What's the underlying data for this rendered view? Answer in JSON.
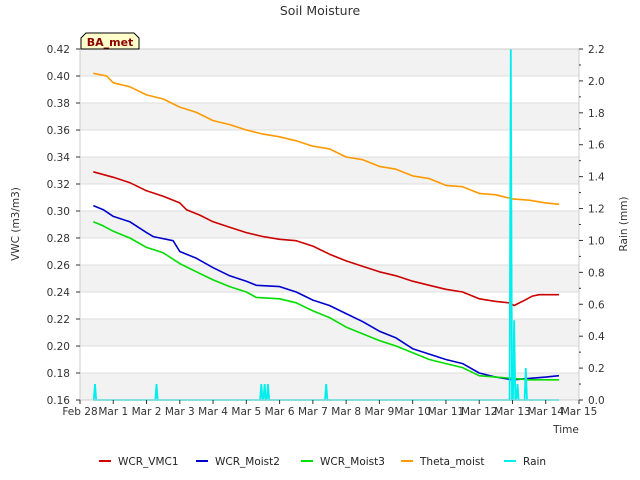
{
  "chart_data": {
    "type": "line",
    "title": "Soil Moisture",
    "station_label": "BA_met",
    "xlabel": "Time",
    "ylabel": "VWC (m3/m3)",
    "y2label": "Rain (mm)",
    "x_ticks": [
      {
        "day": 0,
        "label": "Feb 28"
      },
      {
        "day": 1,
        "label": "Mar 1"
      },
      {
        "day": 2,
        "label": "Mar 2"
      },
      {
        "day": 3,
        "label": "Mar 3"
      },
      {
        "day": 4,
        "label": "Mar 4"
      },
      {
        "day": 5,
        "label": "Mar 5"
      },
      {
        "day": 6,
        "label": "Mar 6"
      },
      {
        "day": 7,
        "label": "Mar 7"
      },
      {
        "day": 8,
        "label": "Mar 8"
      },
      {
        "day": 9,
        "label": "Mar 9"
      },
      {
        "day": 10,
        "label": "Mar 10"
      },
      {
        "day": 11,
        "label": "Mar 11"
      },
      {
        "day": 12,
        "label": "Mar 12"
      },
      {
        "day": 13,
        "label": "Mar 13"
      },
      {
        "day": 14,
        "label": "Mar 14"
      },
      {
        "day": 15,
        "label": "Mar 15"
      }
    ],
    "xlim": [
      0,
      15
    ],
    "ylim": [
      0.16,
      0.42
    ],
    "y_ticks": [
      "0.16",
      "0.18",
      "0.20",
      "0.22",
      "0.24",
      "0.26",
      "0.28",
      "0.30",
      "0.32",
      "0.34",
      "0.36",
      "0.38",
      "0.40",
      "0.42"
    ],
    "y2lim": [
      0.0,
      2.2
    ],
    "y2_ticks": [
      "0.0",
      "0.2",
      "0.4",
      "0.6",
      "0.8",
      "1.0",
      "1.2",
      "1.4",
      "1.6",
      "1.8",
      "2.0",
      "2.2"
    ],
    "series": [
      {
        "name": "WCR_VMC1",
        "axis": "left",
        "color": "#cc0000",
        "points": [
          [
            0.4,
            0.329
          ],
          [
            1.0,
            0.325
          ],
          [
            1.5,
            0.321
          ],
          [
            2.0,
            0.315
          ],
          [
            2.5,
            0.311
          ],
          [
            3.0,
            0.306
          ],
          [
            3.2,
            0.301
          ],
          [
            3.6,
            0.297
          ],
          [
            4.0,
            0.292
          ],
          [
            4.5,
            0.288
          ],
          [
            5.0,
            0.284
          ],
          [
            5.5,
            0.281
          ],
          [
            6.0,
            0.279
          ],
          [
            6.5,
            0.278
          ],
          [
            7.0,
            0.274
          ],
          [
            7.5,
            0.268
          ],
          [
            8.0,
            0.263
          ],
          [
            8.5,
            0.259
          ],
          [
            9.0,
            0.255
          ],
          [
            9.5,
            0.252
          ],
          [
            10.0,
            0.248
          ],
          [
            10.5,
            0.245
          ],
          [
            11.0,
            0.242
          ],
          [
            11.5,
            0.24
          ],
          [
            12.0,
            0.235
          ],
          [
            12.5,
            0.233
          ],
          [
            12.9,
            0.232
          ],
          [
            13.05,
            0.23
          ],
          [
            13.3,
            0.233
          ],
          [
            13.6,
            0.237
          ],
          [
            13.8,
            0.238
          ],
          [
            14.4,
            0.238
          ]
        ]
      },
      {
        "name": "WCR_Moist2",
        "axis": "left",
        "color": "#0000cc",
        "points": [
          [
            0.4,
            0.304
          ],
          [
            0.7,
            0.301
          ],
          [
            1.0,
            0.296
          ],
          [
            1.5,
            0.292
          ],
          [
            2.0,
            0.284
          ],
          [
            2.2,
            0.281
          ],
          [
            2.8,
            0.278
          ],
          [
            3.0,
            0.27
          ],
          [
            3.5,
            0.265
          ],
          [
            4.0,
            0.258
          ],
          [
            4.5,
            0.252
          ],
          [
            5.0,
            0.248
          ],
          [
            5.3,
            0.245
          ],
          [
            6.0,
            0.244
          ],
          [
            6.5,
            0.24
          ],
          [
            7.0,
            0.234
          ],
          [
            7.5,
            0.23
          ],
          [
            8.0,
            0.224
          ],
          [
            8.5,
            0.218
          ],
          [
            9.0,
            0.211
          ],
          [
            9.5,
            0.206
          ],
          [
            10.0,
            0.198
          ],
          [
            10.5,
            0.194
          ],
          [
            11.0,
            0.19
          ],
          [
            11.5,
            0.187
          ],
          [
            12.0,
            0.18
          ],
          [
            12.5,
            0.177
          ],
          [
            13.0,
            0.175
          ],
          [
            13.5,
            0.176
          ],
          [
            14.0,
            0.177
          ],
          [
            14.4,
            0.178
          ]
        ]
      },
      {
        "name": "WCR_Moist3",
        "axis": "left",
        "color": "#00dd00",
        "points": [
          [
            0.4,
            0.292
          ],
          [
            0.7,
            0.289
          ],
          [
            1.0,
            0.285
          ],
          [
            1.5,
            0.28
          ],
          [
            2.0,
            0.273
          ],
          [
            2.5,
            0.269
          ],
          [
            3.0,
            0.261
          ],
          [
            3.5,
            0.255
          ],
          [
            4.0,
            0.249
          ],
          [
            4.5,
            0.244
          ],
          [
            5.0,
            0.24
          ],
          [
            5.3,
            0.236
          ],
          [
            6.0,
            0.235
          ],
          [
            6.5,
            0.232
          ],
          [
            7.0,
            0.226
          ],
          [
            7.5,
            0.221
          ],
          [
            8.0,
            0.214
          ],
          [
            8.5,
            0.209
          ],
          [
            9.0,
            0.204
          ],
          [
            9.5,
            0.2
          ],
          [
            10.0,
            0.195
          ],
          [
            10.5,
            0.19
          ],
          [
            11.0,
            0.187
          ],
          [
            11.5,
            0.184
          ],
          [
            12.0,
            0.178
          ],
          [
            12.5,
            0.177
          ],
          [
            13.0,
            0.176
          ],
          [
            13.5,
            0.175
          ],
          [
            14.0,
            0.175
          ],
          [
            14.4,
            0.175
          ]
        ]
      },
      {
        "name": "Theta_moist",
        "axis": "left",
        "color": "#ff9900",
        "points": [
          [
            0.4,
            0.402
          ],
          [
            0.8,
            0.4
          ],
          [
            1.0,
            0.395
          ],
          [
            1.5,
            0.392
          ],
          [
            2.0,
            0.386
          ],
          [
            2.5,
            0.383
          ],
          [
            3.0,
            0.377
          ],
          [
            3.5,
            0.373
          ],
          [
            4.0,
            0.367
          ],
          [
            4.5,
            0.364
          ],
          [
            5.0,
            0.36
          ],
          [
            5.5,
            0.357
          ],
          [
            6.0,
            0.355
          ],
          [
            6.5,
            0.352
          ],
          [
            7.0,
            0.348
          ],
          [
            7.5,
            0.346
          ],
          [
            8.0,
            0.34
          ],
          [
            8.5,
            0.338
          ],
          [
            9.0,
            0.333
          ],
          [
            9.5,
            0.331
          ],
          [
            10.0,
            0.326
          ],
          [
            10.5,
            0.324
          ],
          [
            11.0,
            0.319
          ],
          [
            11.5,
            0.318
          ],
          [
            12.0,
            0.313
          ],
          [
            12.5,
            0.312
          ],
          [
            13.0,
            0.309
          ],
          [
            13.5,
            0.308
          ],
          [
            14.0,
            0.306
          ],
          [
            14.4,
            0.305
          ]
        ]
      },
      {
        "name": "Rain",
        "axis": "right",
        "color": "#00eeee",
        "spikes": [
          [
            0.45,
            0.1
          ],
          [
            2.3,
            0.1
          ],
          [
            5.45,
            0.1
          ],
          [
            5.55,
            0.1
          ],
          [
            5.65,
            0.1
          ],
          [
            7.4,
            0.1
          ],
          [
            12.95,
            2.2
          ],
          [
            13.05,
            0.5
          ],
          [
            13.15,
            0.1
          ],
          [
            13.4,
            0.2
          ]
        ]
      }
    ],
    "legend": [
      "WCR_VMC1",
      "WCR_Moist2",
      "WCR_Moist3",
      "Theta_moist",
      "Rain"
    ],
    "legend_position": "bottom"
  }
}
